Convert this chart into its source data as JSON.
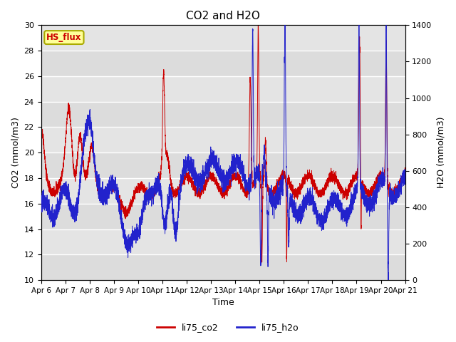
{
  "title": "CO2 and H2O",
  "xlabel": "Time",
  "ylabel_left": "CO2 (mmol/m3)",
  "ylabel_right": "H2O (mmol/m3)",
  "ylim_left": [
    10,
    30
  ],
  "ylim_right": [
    0,
    1400
  ],
  "yticks_left": [
    10,
    12,
    14,
    16,
    18,
    20,
    22,
    24,
    26,
    28,
    30
  ],
  "yticks_right": [
    0,
    200,
    400,
    600,
    800,
    1000,
    1200,
    1400
  ],
  "color_co2": "#cc0000",
  "color_h2o": "#2222cc",
  "background_color": "#e4e4e4",
  "label_box_facecolor": "#ffff99",
  "label_box_edgecolor": "#aaaa00",
  "label_box_text": "HS_flux",
  "label_box_text_color": "#cc0000",
  "legend_co2": "li75_co2",
  "legend_h2o": "li75_h2o",
  "num_points": 5000,
  "seed": 42
}
